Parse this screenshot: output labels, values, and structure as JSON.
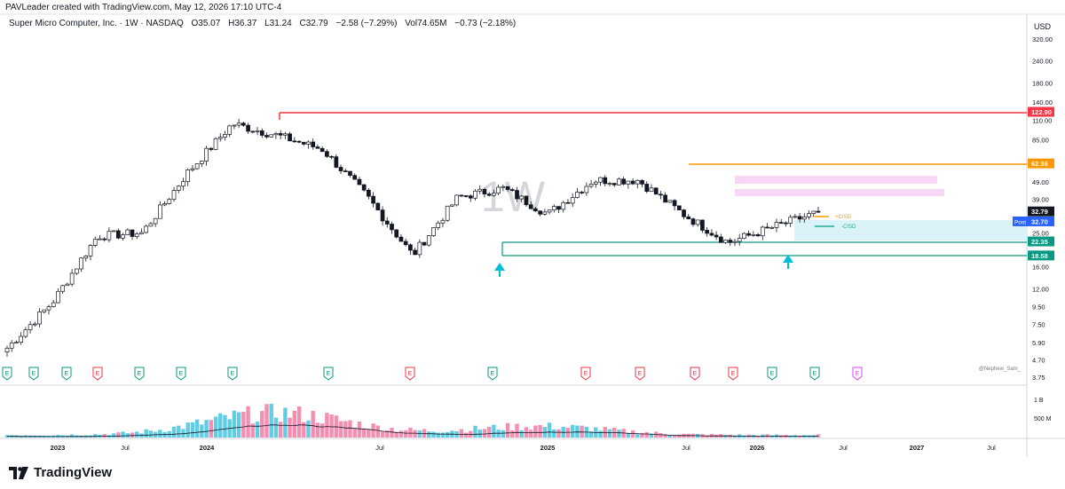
{
  "header": {
    "credit": "PAVLeader created with TradingView.com, May 12, 2026 17:10 UTC-4"
  },
  "legend": {
    "symbol": "Super Micro Computer, Inc. · 1W · NASDAQ",
    "open": "O35.07",
    "high": "H36.37",
    "low": "L31.24",
    "close": "C32.79",
    "change": "−2.58 (−7.29%)",
    "volume": "Vol74.65M",
    "vol_change": "−0.73 (−2.18%)"
  },
  "watermark": "1W",
  "signature": "@Nephew_Sam_",
  "currency_label": "USD",
  "brand": "TradingView",
  "price_axis": {
    "labels": [
      "320.00",
      "240.00",
      "180.00",
      "140.00",
      "110.00",
      "85.00",
      "49.00",
      "39.00",
      "25.00",
      "16.00",
      "12.00",
      "9.50",
      "7.50",
      "5.90",
      "4.70",
      "3.75"
    ],
    "scale": "log"
  },
  "price_tags": [
    {
      "id": "red-level",
      "text": "122.90",
      "color": "#f23645"
    },
    {
      "id": "orange-level",
      "text": "62.36",
      "color": "#ff9800"
    },
    {
      "id": "last",
      "text": "32.79",
      "color": "#131722"
    },
    {
      "id": "post",
      "text": "32.70",
      "label": "Post",
      "color": "#2962ff"
    },
    {
      "id": "teal-upper",
      "text": "22.35",
      "color": "#089981"
    },
    {
      "id": "teal-lower",
      "text": "18.58",
      "color": "#089981"
    }
  ],
  "annotations": {
    "plus_cisd": "+CISD",
    "minus_cisd": "-CISD"
  },
  "volume_axis": {
    "labels": [
      "1 B",
      "500 M"
    ]
  },
  "time_axis": {
    "labels": [
      "2023",
      "Jul",
      "2024",
      "Jul",
      "2025",
      "Jul",
      "2026",
      "Jul",
      "2027",
      "Jul"
    ]
  },
  "events": {
    "earnings": [
      "E",
      "E",
      "E",
      "E",
      "E",
      "E",
      "E",
      "E",
      "E",
      "E",
      "E",
      "E",
      "E",
      "E",
      "E",
      "E",
      "E"
    ],
    "colors": {
      "positive": "#089981",
      "negative": "#f23645",
      "upcoming": "#e040fb"
    }
  },
  "chart_data": {
    "type": "candlestick",
    "symbol": "SMCI",
    "interval": "1W",
    "ylim": [
      3.75,
      320
    ],
    "x": [
      "2023-01",
      "2023-04",
      "2023-07",
      "2023-10",
      "2024-01",
      "2024-03",
      "2024-04",
      "2024-07",
      "2024-10",
      "2024-11",
      "2024-12",
      "2025-02",
      "2025-04",
      "2025-07",
      "2025-10",
      "2025-12",
      "2026-02",
      "2026-04",
      "2026-05"
    ],
    "close": [
      5.5,
      10.0,
      24.0,
      25.0,
      55.0,
      105.0,
      90.0,
      75.0,
      40.0,
      18.6,
      40.0,
      45.0,
      32.0,
      50.0,
      50.0,
      32.0,
      22.0,
      27.0,
      32.79
    ],
    "levels": [
      {
        "name": "red-resistance",
        "value": 122.9
      },
      {
        "name": "orange-level",
        "value": 62.36
      },
      {
        "name": "teal-upper",
        "value": 22.35
      },
      {
        "name": "teal-lower",
        "value": 18.58
      }
    ],
    "last_close": 32.79,
    "post_market": 32.7,
    "volume_ylim": [
      0,
      1000000000
    ]
  }
}
